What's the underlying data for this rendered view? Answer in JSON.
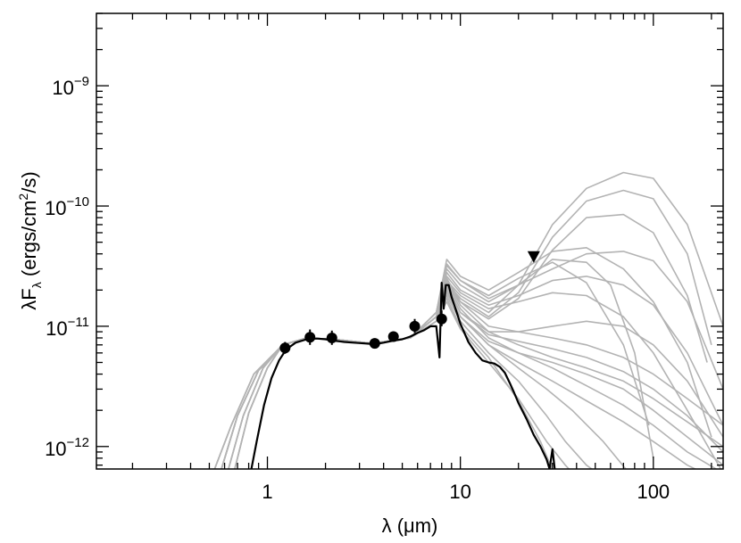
{
  "chart_data": {
    "type": "scatter",
    "title": "",
    "xlabel": "λ (μm)",
    "ylabel": "λF",
    "ylabel_sub": "λ",
    "ylabel_unit_pre": " (ergs/cm",
    "ylabel_unit_sup": "2",
    "ylabel_unit_post": "/s)",
    "x_scale": "log",
    "y_scale": "log",
    "xlim": [
      0.13,
      230
    ],
    "ylim": [
      6.5e-13,
      4e-09
    ],
    "grid": false,
    "x_ticks": [
      {
        "value": 1,
        "label": "1"
      },
      {
        "value": 10,
        "label": "10"
      },
      {
        "value": 100,
        "label": "100"
      }
    ],
    "y_ticks": [
      {
        "value": 1e-12,
        "base": "10",
        "exp": "−12"
      },
      {
        "value": 1e-11,
        "base": "10",
        "exp": "−11"
      },
      {
        "value": 1e-10,
        "base": "10",
        "exp": "−10"
      },
      {
        "value": 1e-09,
        "base": "10",
        "exp": "−9"
      }
    ],
    "colors": {
      "observed": "#000000",
      "models": "#b3b3b3",
      "best_fit": "#000000"
    },
    "observed_points": [
      {
        "x": 1.235,
        "y": 6.6e-12,
        "yerr_lo": 5.9e-12,
        "yerr_hi": 7.4e-12
      },
      {
        "x": 1.662,
        "y": 8.1e-12,
        "yerr_lo": 7e-12,
        "yerr_hi": 9.4e-12
      },
      {
        "x": 2.159,
        "y": 8e-12,
        "yerr_lo": 7e-12,
        "yerr_hi": 9.2e-12
      },
      {
        "x": 3.6,
        "y": 7.2e-12,
        "yerr_lo": 6.6e-12,
        "yerr_hi": 7.8e-12
      },
      {
        "x": 4.5,
        "y": 8.2e-12,
        "yerr_lo": 7.5e-12,
        "yerr_hi": 9e-12
      },
      {
        "x": 5.8,
        "y": 1e-11,
        "yerr_lo": 8.8e-12,
        "yerr_hi": 1.15e-11
      },
      {
        "x": 8.0,
        "y": 1.15e-11,
        "yerr_lo": 1e-11,
        "yerr_hi": 1.35e-11
      }
    ],
    "upper_limits": [
      {
        "x": 24,
        "y": 3.8e-11
      }
    ],
    "best_fit": {
      "x": [
        0.8,
        0.88,
        0.96,
        1.05,
        1.15,
        1.25,
        1.4,
        1.6,
        1.8,
        2.0,
        2.2,
        2.5,
        2.8,
        3.2,
        3.6,
        4.0,
        4.5,
        5.0,
        5.5,
        6.0,
        6.5,
        7.0,
        7.5,
        7.8,
        8.0,
        8.2,
        8.4,
        8.7,
        9.0,
        9.5,
        10,
        11,
        12,
        13,
        14,
        15,
        16,
        17,
        18,
        19,
        20,
        22,
        24,
        26,
        28,
        29,
        30,
        31
      ],
      "y": [
        5e-13,
        1.1e-12,
        2.2e-12,
        3.7e-12,
        5.2e-12,
        6.4e-12,
        7.3e-12,
        7.8e-12,
        7.9e-12,
        7.8e-12,
        7.6e-12,
        7.4e-12,
        7.3e-12,
        7.2e-12,
        7.1e-12,
        7.3e-12,
        7.6e-12,
        7.8e-12,
        8.2e-12,
        8.8e-12,
        9.3e-12,
        1e-11,
        1e-11,
        5.5e-12,
        2.3e-11,
        1.4e-11,
        2.2e-11,
        2.2e-11,
        1.75e-11,
        1.35e-11,
        1.05e-11,
        7.4e-12,
        6e-12,
        5.2e-12,
        5e-12,
        4.9e-12,
        4.6e-12,
        4.1e-12,
        3.4e-12,
        2.8e-12,
        2.3e-12,
        1.7e-12,
        1.25e-12,
        1e-12,
        7.8e-13,
        6.5e-13,
        9.5e-13,
        6e-13
      ]
    },
    "model_curves": [
      {
        "x": [
          0.55,
          0.7,
          0.9,
          1.2,
          1.6,
          2.2,
          3.5,
          5.5,
          7.5,
          8.5,
          10,
          14,
          20,
          30,
          45,
          70,
          100,
          150,
          230
        ],
        "y": [
          5e-13,
          1.8e-12,
          4.3e-12,
          7e-12,
          8e-12,
          7.8e-12,
          7.2e-12,
          8e-12,
          1.2e-11,
          2.4e-11,
          1.8e-11,
          1.3e-11,
          2.2e-11,
          7e-11,
          1.4e-10,
          1.9e-10,
          1.7e-10,
          7e-11,
          1e-11
        ]
      },
      {
        "x": [
          0.55,
          0.7,
          0.9,
          1.2,
          1.6,
          2.2,
          3.5,
          5.5,
          7.5,
          8.5,
          10,
          14,
          20,
          30,
          45,
          70,
          100,
          150,
          200
        ],
        "y": [
          5e-13,
          1.8e-12,
          4.3e-12,
          7e-12,
          8e-12,
          7.8e-12,
          7.2e-12,
          8e-12,
          1.2e-11,
          2.3e-11,
          1.7e-11,
          1.2e-11,
          1.9e-11,
          5.5e-11,
          1.1e-10,
          1.35e-10,
          1.15e-10,
          4e-11,
          7e-12
        ]
      },
      {
        "x": [
          0.55,
          0.7,
          0.9,
          1.2,
          1.6,
          2.2,
          3.5,
          5.5,
          7.5,
          8.5,
          10,
          14,
          20,
          30,
          45,
          70,
          100,
          150,
          190
        ],
        "y": [
          5e-13,
          1.8e-12,
          4.3e-12,
          7e-12,
          8e-12,
          7.8e-12,
          7.2e-12,
          8e-12,
          1.2e-11,
          2.2e-11,
          1.6e-11,
          1.15e-11,
          1.7e-11,
          4.3e-11,
          8e-11,
          8.5e-11,
          6e-11,
          1.8e-11,
          5e-12
        ]
      },
      {
        "x": [
          0.55,
          0.7,
          0.9,
          1.2,
          1.6,
          2.2,
          3.5,
          5.5,
          7.5,
          8.5,
          10,
          14,
          20,
          30,
          45,
          70,
          100,
          150,
          200
        ],
        "y": [
          5e-13,
          1.8e-12,
          4.3e-12,
          7e-12,
          8e-12,
          7.8e-12,
          7.2e-12,
          8e-12,
          1.3e-11,
          3.6e-11,
          2.6e-11,
          2e-11,
          2.8e-11,
          4.2e-11,
          4.5e-11,
          3e-11,
          1.6e-11,
          5e-12,
          1.2e-12
        ]
      },
      {
        "x": [
          0.55,
          0.7,
          0.9,
          1.2,
          1.6,
          2.2,
          3.5,
          5.5,
          7.5,
          8.5,
          10,
          14,
          20,
          30,
          45,
          70,
          95
        ],
        "y": [
          5e-13,
          1.8e-12,
          4.3e-12,
          7e-12,
          8e-12,
          7.8e-12,
          7.2e-12,
          8e-12,
          1.3e-11,
          3.2e-11,
          2.4e-11,
          1.8e-11,
          2.5e-11,
          3.4e-11,
          2.3e-11,
          7e-12,
          1.5e-12
        ]
      },
      {
        "x": [
          0.55,
          0.7,
          0.9,
          1.2,
          1.6,
          2.2,
          3.5,
          5.5,
          7.5,
          8.5,
          10,
          14,
          20,
          30,
          45,
          60,
          80,
          100
        ],
        "y": [
          5e-13,
          1.8e-12,
          4.3e-12,
          7e-12,
          8e-12,
          7.8e-12,
          7.2e-12,
          8e-12,
          1.3e-11,
          3e-11,
          2.2e-11,
          1.6e-11,
          2.2e-11,
          3.6e-11,
          3.4e-11,
          2.2e-11,
          6e-12,
          8e-13
        ]
      },
      {
        "x": [
          0.55,
          0.7,
          0.9,
          1.2,
          1.6,
          2.2,
          3.5,
          5.5,
          7.5,
          8.5,
          10,
          14,
          20,
          30,
          45,
          70,
          100,
          150,
          230
        ],
        "y": [
          5e-13,
          1.8e-12,
          4.3e-12,
          7e-12,
          8e-12,
          7.8e-12,
          7.2e-12,
          8e-12,
          1.3e-11,
          3.3e-11,
          2.4e-11,
          1.7e-11,
          2.2e-11,
          3e-11,
          4e-11,
          4.2e-11,
          3.5e-11,
          1.6e-11,
          3e-12
        ]
      },
      {
        "x": [
          0.55,
          0.7,
          0.9,
          1.2,
          1.6,
          2.2,
          3.5,
          5.5,
          7.5,
          8.5,
          10,
          14,
          20,
          30,
          45,
          70,
          100,
          150,
          230
        ],
        "y": [
          5e-13,
          1.8e-12,
          4.3e-12,
          7e-12,
          8e-12,
          7.8e-12,
          7.2e-12,
          8e-12,
          1.2e-11,
          2.8e-11,
          2e-11,
          1.5e-11,
          1.8e-11,
          2.4e-11,
          2.6e-11,
          2.2e-11,
          1.5e-11,
          6e-12,
          1.5e-12
        ]
      },
      {
        "x": [
          0.55,
          0.7,
          0.9,
          1.2,
          1.6,
          2.2,
          3.5,
          5.5,
          7.5,
          8.5,
          10,
          14,
          20,
          30,
          45,
          70,
          100,
          150,
          230
        ],
        "y": [
          5e-13,
          1.8e-12,
          4.3e-12,
          7e-12,
          8e-12,
          7.8e-12,
          7.2e-12,
          8e-12,
          1.2e-11,
          2.6e-11,
          1.9e-11,
          1.4e-11,
          1.6e-11,
          1.9e-11,
          1.8e-11,
          1.2e-11,
          6e-12,
          2e-12,
          6e-13
        ]
      },
      {
        "x": [
          0.5,
          0.65,
          0.85,
          1.2,
          1.6,
          2.2,
          3.5,
          5.5,
          7.5,
          8.5,
          10,
          14,
          20,
          30,
          45,
          70,
          100,
          150,
          230
        ],
        "y": [
          5e-13,
          1.5e-12,
          4e-12,
          7e-12,
          8e-12,
          7.8e-12,
          7.2e-12,
          8e-12,
          1.2e-11,
          2.4e-11,
          1.5e-11,
          9e-12,
          7e-12,
          5.5e-12,
          4.5e-12,
          3.5e-12,
          2.5e-12,
          1.6e-12,
          1e-12
        ]
      },
      {
        "x": [
          0.5,
          0.65,
          0.85,
          1.2,
          1.6,
          2.2,
          3.5,
          5.5,
          7.5,
          8.5,
          10,
          14,
          20,
          30,
          45,
          70,
          100,
          150,
          230
        ],
        "y": [
          5e-13,
          1.5e-12,
          4e-12,
          7e-12,
          8e-12,
          7.8e-12,
          7.2e-12,
          8e-12,
          1.2e-11,
          2.5e-11,
          1.6e-11,
          1e-11,
          9e-12,
          8e-12,
          7e-12,
          5.5e-12,
          4e-12,
          2.5e-12,
          1.5e-12
        ]
      },
      {
        "x": [
          0.5,
          0.65,
          0.85,
          1.2,
          1.6,
          2.2,
          3.5,
          5.5,
          7.5,
          8.5,
          10,
          14,
          20,
          30,
          45,
          70,
          100,
          150,
          230
        ],
        "y": [
          5e-13,
          1.5e-12,
          4e-12,
          7e-12,
          8e-12,
          7.8e-12,
          7.2e-12,
          8e-12,
          1.2e-11,
          2.3e-11,
          1.4e-11,
          8e-12,
          6e-12,
          4.5e-12,
          3.2e-12,
          2.2e-12,
          1.5e-12,
          9e-13,
          6e-13
        ]
      },
      {
        "x": [
          0.6,
          0.75,
          0.95,
          1.2,
          1.6,
          2.2,
          3.5,
          5.5,
          7.5,
          8.5,
          10,
          14,
          20,
          30,
          45,
          70,
          100,
          150,
          230
        ],
        "y": [
          5e-13,
          1.8e-12,
          4.5e-12,
          7e-12,
          8e-12,
          7.8e-12,
          7.2e-12,
          8e-12,
          1.2e-11,
          2.2e-11,
          1.3e-11,
          8.5e-12,
          7.5e-12,
          6.5e-12,
          5.5e-12,
          4.2e-12,
          3e-12,
          1.8e-12,
          9e-13
        ]
      },
      {
        "x": [
          0.6,
          0.75,
          0.95,
          1.2,
          1.6,
          2.2,
          3.5,
          5.5,
          7.5,
          8.5,
          10,
          14,
          20,
          30,
          45,
          70,
          100,
          150,
          230
        ],
        "y": [
          5e-13,
          1.8e-12,
          4.5e-12,
          7e-12,
          8e-12,
          7.8e-12,
          7.2e-12,
          8e-12,
          1.2e-11,
          2e-11,
          1.2e-11,
          7e-12,
          5e-12,
          3.5e-12,
          2.4e-12,
          1.6e-12,
          1.1e-12,
          7e-13,
          5e-13
        ]
      },
      {
        "x": [
          0.6,
          0.75,
          0.95,
          1.2,
          1.6,
          2.2,
          3.5,
          5.5,
          7.5,
          8.5,
          10,
          14,
          20,
          30,
          45,
          70,
          100,
          150,
          230
        ],
        "y": [
          5e-13,
          1.8e-12,
          4.5e-12,
          7e-12,
          8e-12,
          7.8e-12,
          7.2e-12,
          8e-12,
          1.2e-11,
          2.1e-11,
          1.3e-11,
          9e-12,
          9e-12,
          1e-11,
          1.1e-11,
          1e-11,
          7e-12,
          3.5e-12,
          1.2e-12
        ]
      },
      {
        "x": [
          0.6,
          0.75,
          0.95,
          1.2,
          1.6,
          2.2,
          3.5,
          5.5,
          7.5,
          8.5,
          10,
          14,
          20,
          30,
          45,
          70,
          100,
          150,
          230
        ],
        "y": [
          5e-13,
          1.8e-12,
          4.5e-12,
          7e-12,
          8e-12,
          7.8e-12,
          7.2e-12,
          8e-12,
          1.2e-11,
          2e-11,
          1.2e-11,
          7.5e-12,
          6e-12,
          5e-12,
          4e-12,
          3e-12,
          2e-12,
          1.2e-12,
          7e-13
        ]
      },
      {
        "x": [
          0.65,
          0.8,
          1.0,
          1.2,
          1.6,
          2.2,
          3.5,
          5.5,
          7.5,
          8.5,
          10,
          14,
          20,
          28,
          35,
          45,
          60,
          80
        ],
        "y": [
          5e-13,
          1.9e-12,
          4.5e-12,
          7e-12,
          8e-12,
          7.8e-12,
          7.2e-12,
          8e-12,
          1.1e-11,
          1.8e-11,
          1.1e-11,
          6e-12,
          3.5e-12,
          1.8e-12,
          1.1e-12,
          7e-13,
          5e-13,
          4e-13
        ]
      },
      {
        "x": [
          0.65,
          0.8,
          1.0,
          1.2,
          1.6,
          2.2,
          3.5,
          5.5,
          7.5,
          8.5,
          10,
          14,
          20,
          28,
          35,
          45
        ],
        "y": [
          5e-13,
          1.9e-12,
          4.5e-12,
          7e-12,
          8e-12,
          7.8e-12,
          7.2e-12,
          8e-12,
          1.1e-11,
          1.6e-11,
          9.5e-12,
          5e-12,
          2.5e-12,
          1.1e-12,
          7e-13,
          4.5e-13
        ]
      },
      {
        "x": [
          0.65,
          0.8,
          1.0,
          1.2,
          1.6,
          2.2,
          3.5,
          5.5,
          7.5,
          8.5,
          10,
          14,
          20,
          26,
          32
        ],
        "y": [
          5e-13,
          1.9e-12,
          4.5e-12,
          7e-12,
          8e-12,
          7.8e-12,
          7.2e-12,
          8e-12,
          1.1e-11,
          1.7e-11,
          1e-11,
          5.5e-12,
          2.4e-12,
          1.1e-12,
          5e-13
        ]
      },
      {
        "x": [
          0.65,
          0.8,
          1.0,
          1.2,
          1.6,
          2.2,
          3.5,
          5.5,
          7.5,
          8.5,
          10,
          14,
          20,
          28,
          38,
          55,
          75
        ],
        "y": [
          5e-13,
          1.9e-12,
          4.5e-12,
          7e-12,
          8e-12,
          7.8e-12,
          7.2e-12,
          8e-12,
          1.1e-11,
          1.9e-11,
          1.2e-11,
          7e-12,
          4.5e-12,
          3e-12,
          2e-12,
          1.1e-12,
          6e-13
        ]
      }
    ]
  }
}
